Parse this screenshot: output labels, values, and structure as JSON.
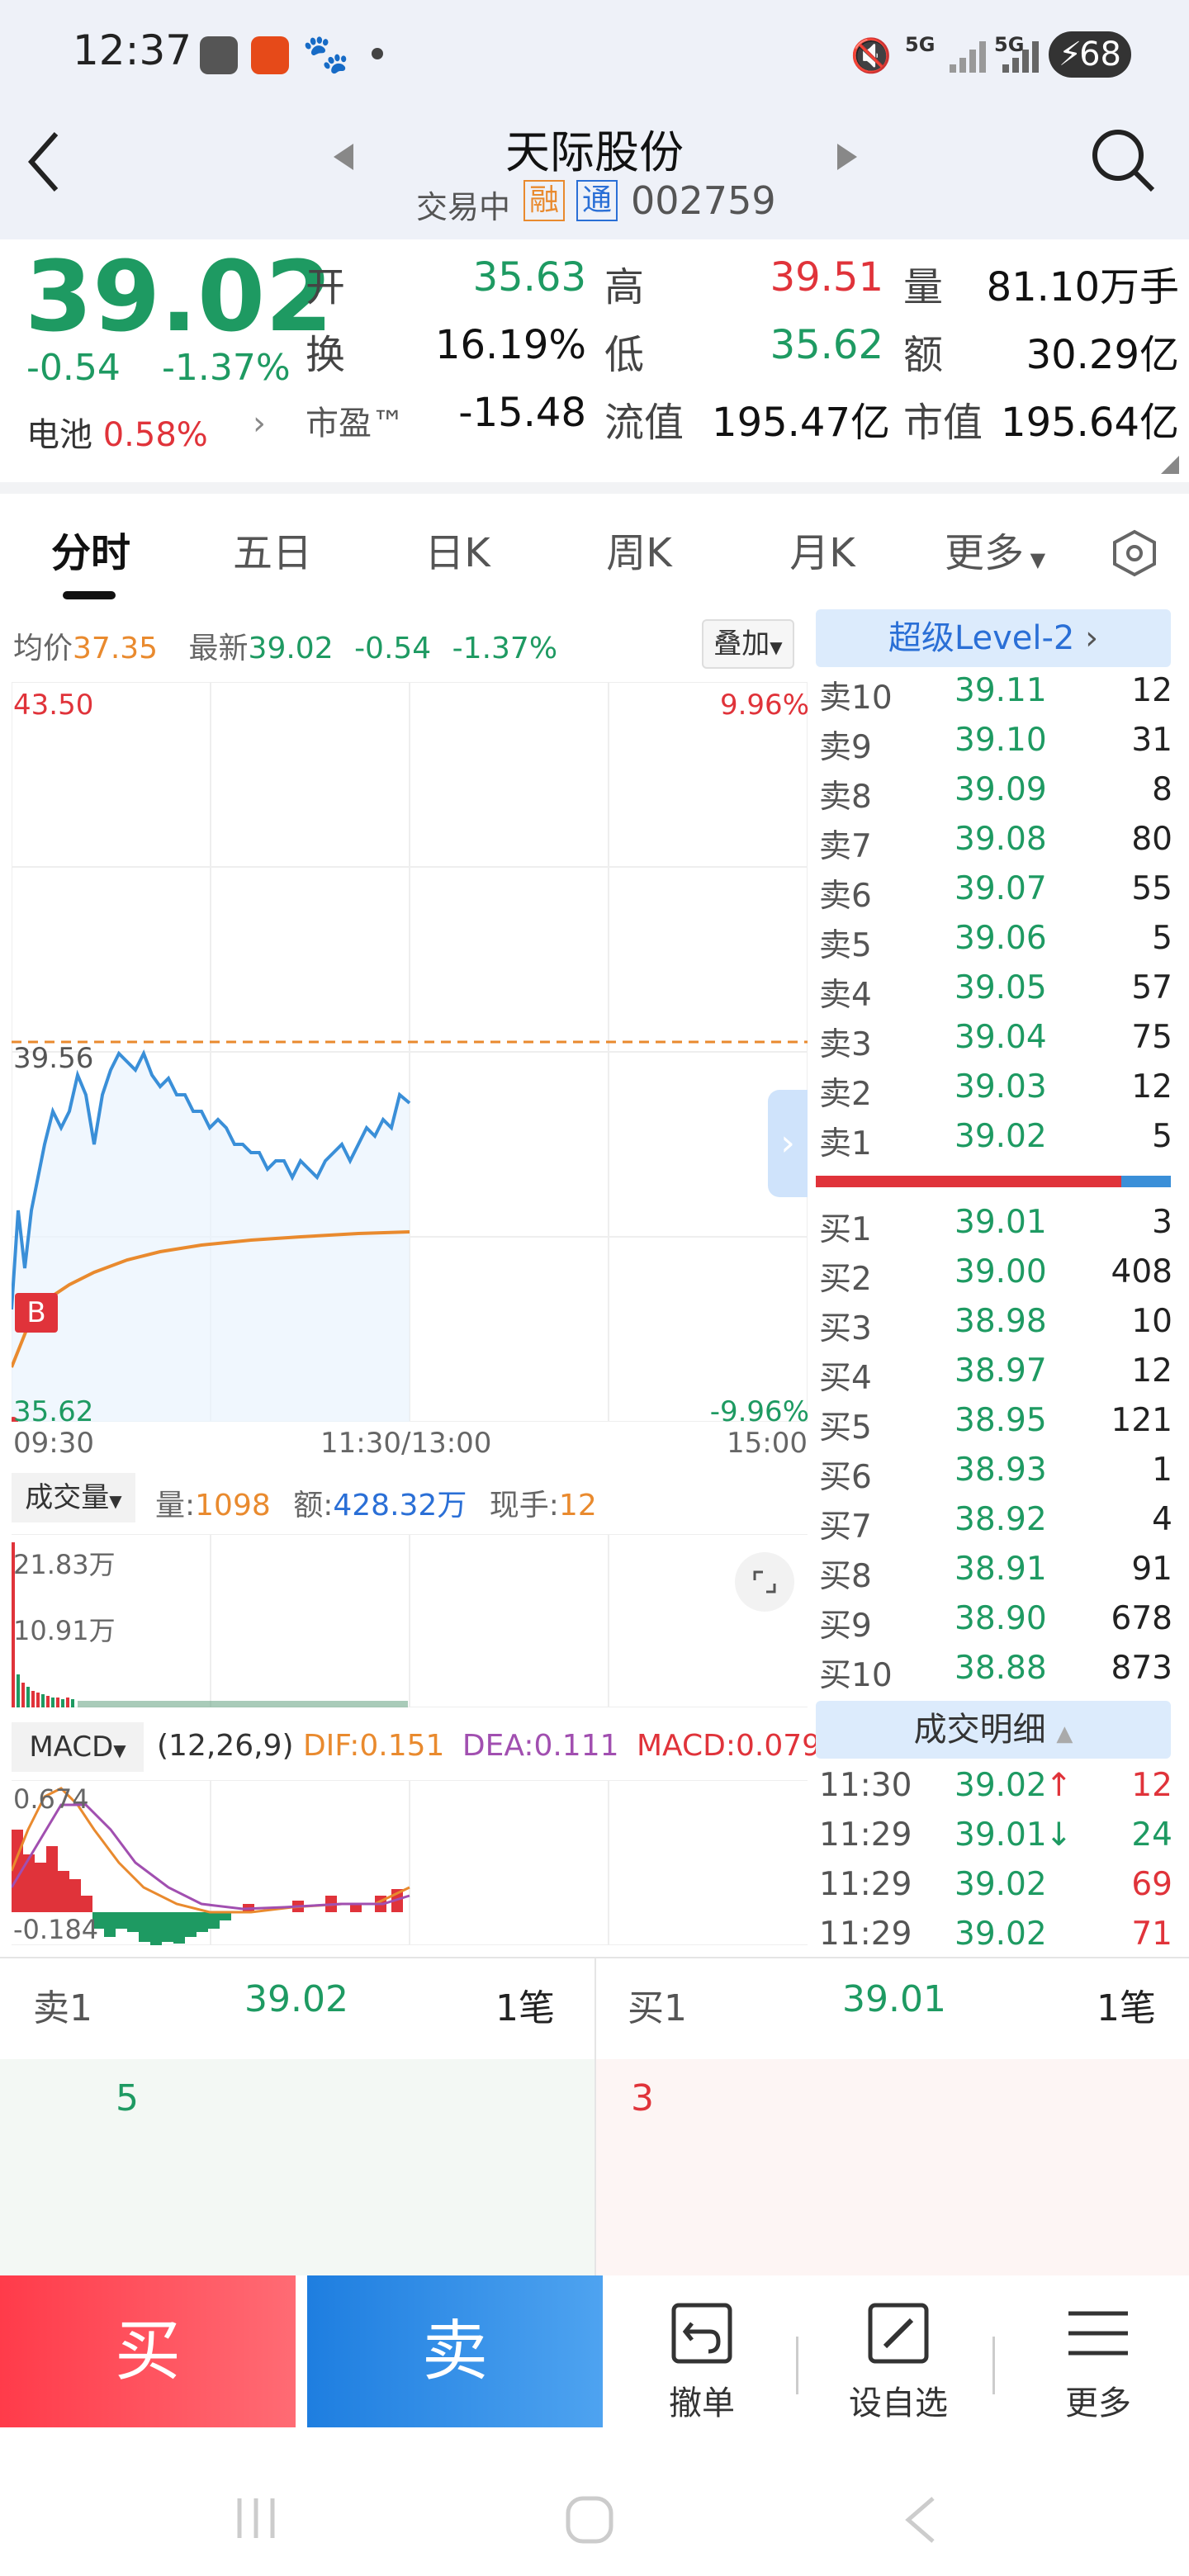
{
  "status_bar": {
    "time": "12:37",
    "battery": "68",
    "net1": "5G",
    "net2": "5G"
  },
  "header": {
    "stock_name": "天际股份",
    "trade_status": "交易中",
    "badge_rong": "融",
    "badge_tong": "通",
    "code": "002759"
  },
  "quote": {
    "price": "39.02",
    "change": "-0.54",
    "change_pct": "-1.37%",
    "sector_label": "电池",
    "sector_pct": "0.58%",
    "open_label": "开",
    "open": "35.63",
    "high_label": "高",
    "high": "39.51",
    "volume_label": "量",
    "volume": "81.10万手",
    "turnover_label": "换",
    "turnover": "16.19%",
    "low_label": "低",
    "low": "35.62",
    "amount_label": "额",
    "amount": "30.29亿",
    "pe_label": "市盈™",
    "pe": "-15.48",
    "float_cap_label": "流值",
    "float_cap": "195.47亿",
    "mkt_cap_label": "市值",
    "mkt_cap": "195.64亿"
  },
  "tabs": [
    "分时",
    "五日",
    "日K",
    "周K",
    "月K",
    "更多"
  ],
  "intraday": {
    "avg_label": "均价",
    "avg": "37.35",
    "latest_label": "最新",
    "latest": "39.02",
    "chg": "-0.54",
    "chg_pct": "-1.37%",
    "overlay_button": "叠加",
    "top_price": "43.50",
    "top_pct": "9.96%",
    "ref_price": "39.56",
    "bottom_price": "35.62",
    "bottom_pct": "-9.96%",
    "buy_marker": "B",
    "time_start": "09:30",
    "time_mid": "11:30/13:00",
    "time_end": "15:00"
  },
  "volume_panel": {
    "selector": "成交量",
    "vol_label": "量:",
    "vol": "1098",
    "amt_label": "额:",
    "amt": "428.32万",
    "hand_label": "现手:",
    "hand": "12",
    "tick_high": "21.83万",
    "tick_mid": "10.91万"
  },
  "macd_panel": {
    "selector": "MACD",
    "params": "(12,26,9)",
    "dif_label": "DIF:",
    "dif": "0.151",
    "dea_label": "DEA:",
    "dea": "0.111",
    "macd_label": "MACD:",
    "macd": "0.079",
    "tick_high": "0.674",
    "tick_low": "-0.184"
  },
  "level2": {
    "title": "超级Level-2"
  },
  "order_book": {
    "asks": [
      {
        "label": "卖10",
        "price": "39.11",
        "vol": "12"
      },
      {
        "label": "卖9",
        "price": "39.10",
        "vol": "31"
      },
      {
        "label": "卖8",
        "price": "39.09",
        "vol": "8"
      },
      {
        "label": "卖7",
        "price": "39.08",
        "vol": "80"
      },
      {
        "label": "卖6",
        "price": "39.07",
        "vol": "55"
      },
      {
        "label": "卖5",
        "price": "39.06",
        "vol": "5"
      },
      {
        "label": "卖4",
        "price": "39.05",
        "vol": "57"
      },
      {
        "label": "卖3",
        "price": "39.04",
        "vol": "75"
      },
      {
        "label": "卖2",
        "price": "39.03",
        "vol": "12"
      },
      {
        "label": "卖1",
        "price": "39.02",
        "vol": "5"
      }
    ],
    "bids": [
      {
        "label": "买1",
        "price": "39.01",
        "vol": "3"
      },
      {
        "label": "买2",
        "price": "39.00",
        "vol": "408"
      },
      {
        "label": "买3",
        "price": "38.98",
        "vol": "10"
      },
      {
        "label": "买4",
        "price": "38.97",
        "vol": "12"
      },
      {
        "label": "买5",
        "price": "38.95",
        "vol": "121"
      },
      {
        "label": "买6",
        "price": "38.93",
        "vol": "1"
      },
      {
        "label": "买7",
        "price": "38.92",
        "vol": "4"
      },
      {
        "label": "买8",
        "price": "38.91",
        "vol": "91"
      },
      {
        "label": "买9",
        "price": "38.90",
        "vol": "678"
      },
      {
        "label": "买10",
        "price": "38.88",
        "vol": "873"
      }
    ]
  },
  "trade_detail": {
    "title": "成交明细",
    "rows": [
      {
        "time": "11:30",
        "price": "39.02",
        "arrow": "↑",
        "vol": "12"
      },
      {
        "time": "11:29",
        "price": "39.01",
        "arrow": "↓",
        "vol": "24"
      },
      {
        "time": "11:29",
        "price": "39.02",
        "arrow": "",
        "vol": "69"
      },
      {
        "time": "11:29",
        "price": "39.02",
        "arrow": "",
        "vol": "71"
      }
    ]
  },
  "queue": {
    "sell_label": "卖1",
    "sell_price": "39.02",
    "sell_count": "1笔",
    "sell_qty": "5",
    "buy_label": "买1",
    "buy_price": "39.01",
    "buy_count": "1笔",
    "buy_qty": "3"
  },
  "bottom_bar": {
    "buy": "买",
    "sell": "卖",
    "cancel": "撤单",
    "watchlist": "设自选",
    "more": "更多"
  },
  "colors": {
    "up": "#e0333a",
    "down": "#1e9a62",
    "avg_line": "#e98a2e",
    "price_line": "#3a8fd8"
  }
}
